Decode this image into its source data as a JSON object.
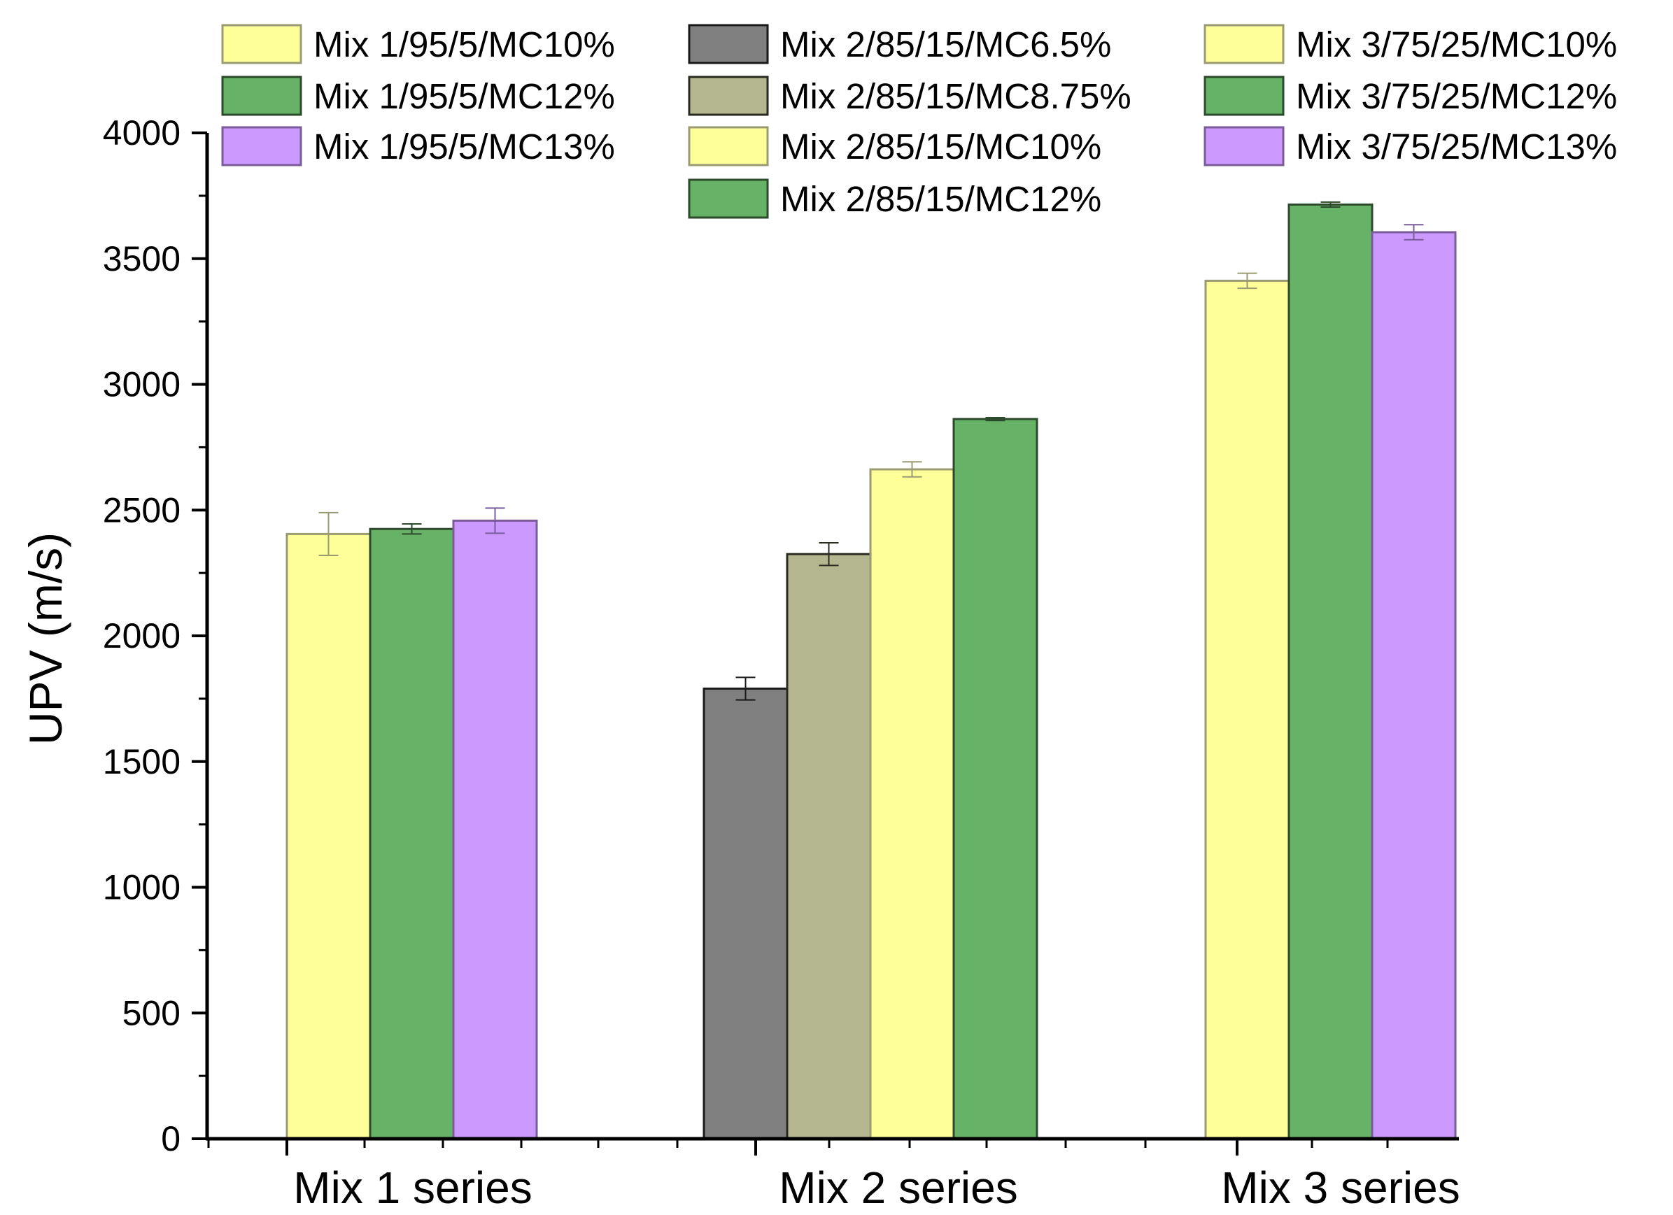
{
  "chart_data": {
    "type": "bar",
    "title": "",
    "xlabel": "",
    "ylabel": "UPV (m/s)",
    "ylim": [
      0,
      4000
    ],
    "yticks": [
      0,
      500,
      1000,
      1500,
      2000,
      2500,
      3000,
      3500,
      4000
    ],
    "categories": [
      "Mix 1 series",
      "Mix 2 series",
      "Mix 3 series"
    ],
    "groups": [
      {
        "category": "Mix 1 series",
        "bars": [
          {
            "name": "Mix 1/95/5/MC10%",
            "value": 2405,
            "error": 85,
            "color": "#ffff99",
            "stroke": "#9a9a73"
          },
          {
            "name": "Mix 1/95/5/MC12%",
            "value": 2425,
            "error": 20,
            "color": "#66b266",
            "stroke": "#2c4a2c"
          },
          {
            "name": "Mix 1/95/5/MC13%",
            "value": 2458,
            "error": 50,
            "color": "#cc99ff",
            "stroke": "#7a5c99"
          }
        ]
      },
      {
        "category": "Mix 2 series",
        "bars": [
          {
            "name": "Mix 2/85/15/MC6.5%",
            "value": 1790,
            "error": 45,
            "color": "#808080",
            "stroke": "#1a1a1a"
          },
          {
            "name": "Mix 2/85/15/MC8.75%",
            "value": 2325,
            "error": 45,
            "color": "#b3b68f",
            "stroke": "#2a2a20"
          },
          {
            "name": "Mix 2/85/15/MC10%",
            "value": 2662,
            "error": 30,
            "color": "#ffff99",
            "stroke": "#9a9a73"
          },
          {
            "name": "Mix 2/85/15/MC12%",
            "value": 2862,
            "error": 6,
            "color": "#66b266",
            "stroke": "#2c4a2c"
          }
        ]
      },
      {
        "category": "Mix 3 series",
        "bars": [
          {
            "name": "Mix 3/75/25/MC10%",
            "value": 3412,
            "error": 30,
            "color": "#ffff99",
            "stroke": "#9a9a73"
          },
          {
            "name": "Mix 3/75/25/MC12%",
            "value": 3715,
            "error": 10,
            "color": "#66b266",
            "stroke": "#2c4a2c"
          },
          {
            "name": "Mix 3/75/25/MC13%",
            "value": 3605,
            "error": 30,
            "color": "#cc99ff",
            "stroke": "#7a5c99"
          }
        ]
      }
    ],
    "legend": {
      "placement": "top",
      "columns": [
        [
          "Mix 1/95/5/MC10%",
          "Mix 1/95/5/MC12%",
          "Mix 1/95/5/MC13%"
        ],
        [
          "Mix 2/85/15/MC6.5%",
          "Mix 2/85/15/MC8.75%",
          "Mix 2/85/15/MC10%",
          "Mix 2/85/15/MC12%"
        ],
        [
          "Mix 3/75/25/MC10%",
          "Mix 3/75/25/MC12%",
          "Mix 3/75/25/MC13%"
        ]
      ]
    },
    "grid": false
  }
}
